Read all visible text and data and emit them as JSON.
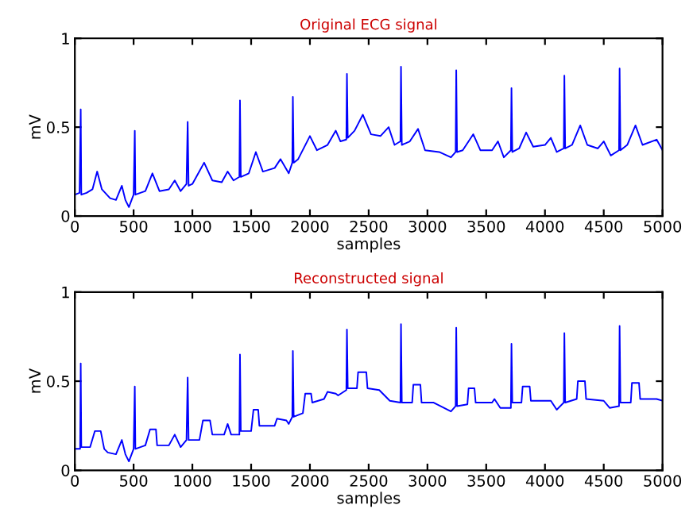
{
  "chart_data": [
    {
      "type": "line",
      "title": "Original ECG signal",
      "xlabel": "samples",
      "ylabel": "mV",
      "xlim": [
        0,
        5000
      ],
      "ylim": [
        0,
        1
      ],
      "xticks": [
        0,
        500,
        1000,
        1500,
        2000,
        2500,
        3000,
        3500,
        4000,
        4500,
        5000
      ],
      "yticks": [
        0,
        0.5,
        1
      ],
      "series": [
        {
          "color": "#0000ff",
          "x": [
            0,
            40,
            50,
            55,
            100,
            150,
            190,
            230,
            300,
            350,
            400,
            430,
            460,
            500,
            510,
            515,
            600,
            660,
            720,
            800,
            850,
            900,
            950,
            960,
            968,
            1000,
            1100,
            1170,
            1250,
            1300,
            1350,
            1400,
            1405,
            1412,
            1480,
            1540,
            1600,
            1700,
            1750,
            1820,
            1850,
            1855,
            1862,
            1900,
            2000,
            2060,
            2150,
            2220,
            2260,
            2310,
            2315,
            2322,
            2380,
            2450,
            2520,
            2600,
            2670,
            2720,
            2770,
            2775,
            2782,
            2850,
            2920,
            2980,
            3100,
            3200,
            3240,
            3245,
            3252,
            3300,
            3390,
            3450,
            3550,
            3600,
            3650,
            3710,
            3715,
            3722,
            3780,
            3840,
            3900,
            4000,
            4050,
            4100,
            4160,
            4165,
            4172,
            4230,
            4300,
            4360,
            4450,
            4500,
            4560,
            4630,
            4635,
            4642,
            4700,
            4770,
            4830,
            4950,
            5000
          ],
          "values": [
            0.12,
            0.13,
            0.6,
            0.12,
            0.13,
            0.15,
            0.25,
            0.15,
            0.1,
            0.09,
            0.17,
            0.09,
            0.05,
            0.12,
            0.48,
            0.12,
            0.14,
            0.24,
            0.14,
            0.15,
            0.2,
            0.14,
            0.18,
            0.53,
            0.17,
            0.18,
            0.3,
            0.2,
            0.19,
            0.25,
            0.2,
            0.22,
            0.65,
            0.22,
            0.24,
            0.36,
            0.25,
            0.27,
            0.32,
            0.24,
            0.3,
            0.67,
            0.3,
            0.32,
            0.45,
            0.37,
            0.4,
            0.48,
            0.42,
            0.43,
            0.8,
            0.44,
            0.48,
            0.57,
            0.46,
            0.45,
            0.5,
            0.4,
            0.42,
            0.84,
            0.4,
            0.42,
            0.49,
            0.37,
            0.36,
            0.33,
            0.36,
            0.82,
            0.36,
            0.37,
            0.46,
            0.37,
            0.37,
            0.42,
            0.33,
            0.37,
            0.72,
            0.36,
            0.38,
            0.47,
            0.39,
            0.4,
            0.44,
            0.36,
            0.38,
            0.79,
            0.38,
            0.4,
            0.51,
            0.4,
            0.38,
            0.42,
            0.34,
            0.37,
            0.83,
            0.37,
            0.4,
            0.51,
            0.4,
            0.43,
            0.37
          ]
        }
      ]
    },
    {
      "type": "line",
      "title": "Reconstructed signal",
      "xlabel": "samples",
      "ylabel": "mV",
      "xlim": [
        0,
        5000
      ],
      "ylim": [
        0,
        1
      ],
      "xticks": [
        0,
        500,
        1000,
        1500,
        2000,
        2500,
        3000,
        3500,
        4000,
        4500,
        5000
      ],
      "yticks": [
        0,
        0.5,
        1
      ],
      "series": [
        {
          "color": "#0000ff",
          "x": [
            0,
            45,
            50,
            55,
            130,
            170,
            220,
            250,
            280,
            350,
            400,
            430,
            460,
            500,
            510,
            515,
            600,
            640,
            690,
            700,
            800,
            850,
            900,
            950,
            960,
            968,
            1060,
            1090,
            1150,
            1170,
            1270,
            1300,
            1330,
            1400,
            1405,
            1412,
            1500,
            1520,
            1560,
            1570,
            1700,
            1720,
            1800,
            1820,
            1850,
            1855,
            1862,
            1940,
            1960,
            2010,
            2020,
            2120,
            2150,
            2220,
            2240,
            2310,
            2315,
            2322,
            2400,
            2410,
            2480,
            2490,
            2590,
            2620,
            2680,
            2770,
            2775,
            2782,
            2870,
            2880,
            2940,
            2950,
            3050,
            3080,
            3200,
            3240,
            3245,
            3252,
            3340,
            3350,
            3400,
            3410,
            3550,
            3570,
            3620,
            3710,
            3715,
            3722,
            3800,
            3810,
            3870,
            3880,
            4050,
            4100,
            4160,
            4165,
            4172,
            4270,
            4280,
            4340,
            4350,
            4500,
            4550,
            4630,
            4635,
            4642,
            4730,
            4740,
            4800,
            4810,
            4950,
            5000
          ],
          "values": [
            0.12,
            0.12,
            0.6,
            0.13,
            0.13,
            0.22,
            0.22,
            0.12,
            0.1,
            0.09,
            0.17,
            0.09,
            0.05,
            0.12,
            0.47,
            0.12,
            0.14,
            0.23,
            0.23,
            0.14,
            0.14,
            0.2,
            0.13,
            0.17,
            0.52,
            0.17,
            0.17,
            0.28,
            0.28,
            0.2,
            0.2,
            0.26,
            0.2,
            0.2,
            0.65,
            0.22,
            0.22,
            0.34,
            0.34,
            0.25,
            0.25,
            0.29,
            0.28,
            0.26,
            0.3,
            0.67,
            0.3,
            0.32,
            0.43,
            0.43,
            0.38,
            0.4,
            0.44,
            0.43,
            0.42,
            0.45,
            0.79,
            0.46,
            0.46,
            0.55,
            0.55,
            0.46,
            0.45,
            0.43,
            0.39,
            0.38,
            0.82,
            0.38,
            0.38,
            0.48,
            0.48,
            0.38,
            0.38,
            0.37,
            0.33,
            0.36,
            0.8,
            0.36,
            0.37,
            0.46,
            0.46,
            0.38,
            0.38,
            0.4,
            0.35,
            0.35,
            0.71,
            0.38,
            0.38,
            0.47,
            0.47,
            0.39,
            0.39,
            0.34,
            0.38,
            0.77,
            0.38,
            0.4,
            0.5,
            0.5,
            0.4,
            0.39,
            0.35,
            0.36,
            0.81,
            0.38,
            0.38,
            0.49,
            0.49,
            0.4,
            0.4,
            0.39
          ]
        }
      ]
    }
  ]
}
